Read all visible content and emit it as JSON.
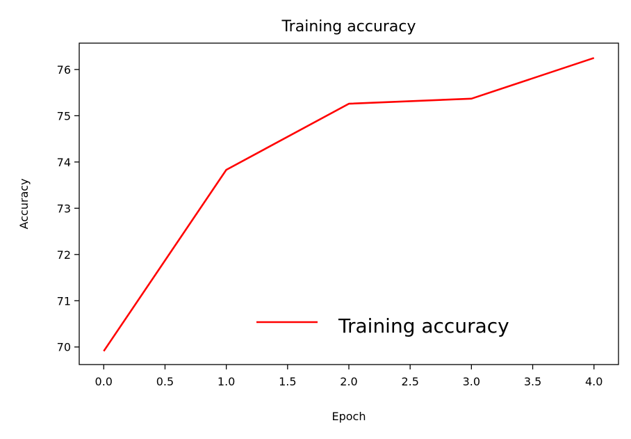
{
  "chart_data": {
    "type": "line",
    "title": "Training accuracy",
    "xlabel": "Epoch",
    "ylabel": "Accuracy",
    "xlim": [
      -0.2,
      4.2
    ],
    "ylim": [
      69.62,
      76.57
    ],
    "xticks": [
      "0.0",
      "0.5",
      "1.0",
      "1.5",
      "2.0",
      "2.5",
      "3.0",
      "3.5",
      "4.0"
    ],
    "yticks": [
      "70",
      "71",
      "72",
      "73",
      "74",
      "75",
      "76"
    ],
    "grid": false,
    "legend_position": "lower-right",
    "series": [
      {
        "name": "Training accuracy",
        "color": "#ff0000",
        "x": [
          0,
          1,
          2,
          3,
          4
        ],
        "y": [
          69.91,
          73.83,
          75.26,
          75.37,
          76.25
        ]
      }
    ]
  }
}
